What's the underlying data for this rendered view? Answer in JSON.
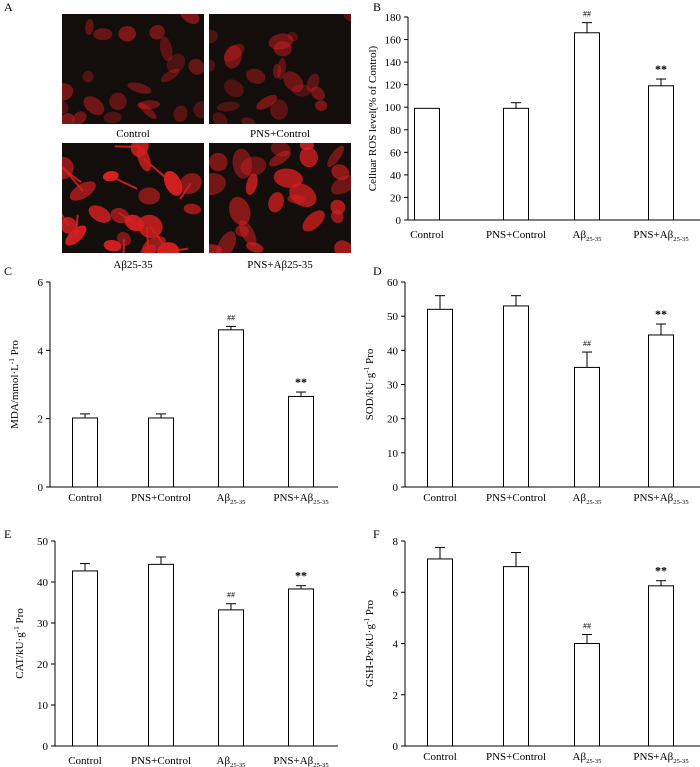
{
  "panel_letters": [
    "A",
    "B",
    "C",
    "D",
    "E",
    "F"
  ],
  "micrographs": [
    {
      "caption": "Control",
      "intensity": "low"
    },
    {
      "caption": "PNS+Control",
      "intensity": "low"
    },
    {
      "caption": "Aβ25-35",
      "intensity": "high"
    },
    {
      "caption": "PNS+Aβ25-35",
      "intensity": "medium"
    }
  ],
  "colors": {
    "cell": "#d42020",
    "background": "#130d0c"
  },
  "chart_data": [
    {
      "panel": "B",
      "type": "bar",
      "categories": [
        "Control",
        "PNS+Control",
        "Aβ25-35",
        "PNS+Aβ25-35"
      ],
      "values": [
        99,
        99,
        166,
        119
      ],
      "errors": [
        0,
        5,
        9,
        6
      ],
      "annotations": [
        "",
        "",
        "##",
        "**"
      ],
      "ylabel": "Celluar ROS level(% of Control)",
      "ylim": [
        0,
        180
      ],
      "yticks": [
        0,
        20,
        40,
        60,
        80,
        100,
        120,
        140,
        160,
        180
      ]
    },
    {
      "panel": "C",
      "type": "bar",
      "categories": [
        "Control",
        "PNS+Control",
        "Aβ25-35",
        "PNS+Aβ25-35"
      ],
      "values": [
        2.02,
        2.02,
        4.6,
        2.65
      ],
      "errors": [
        0.12,
        0.12,
        0.1,
        0.13
      ],
      "annotations": [
        "",
        "",
        "##",
        "**"
      ],
      "ylabel": "MDA/mmol·L⁻¹ Pro",
      "ylim": [
        0,
        6
      ],
      "yticks": [
        0,
        2,
        4,
        6
      ]
    },
    {
      "panel": "D",
      "type": "bar",
      "categories": [
        "Control",
        "PNS+Control",
        "Aβ25-35",
        "PNS+Aβ25-35"
      ],
      "values": [
        52,
        53,
        35,
        44.5
      ],
      "errors": [
        4,
        3,
        4.5,
        3.2
      ],
      "annotations": [
        "",
        "",
        "##",
        "**"
      ],
      "ylabel": "SOD/kU·g⁻¹ Pro",
      "ylim": [
        0,
        60
      ],
      "yticks": [
        0,
        10,
        20,
        30,
        40,
        50,
        60
      ]
    },
    {
      "panel": "E",
      "type": "bar",
      "categories": [
        "Control",
        "PNS+Control",
        "Aβ25-35",
        "PNS+Aβ25-35"
      ],
      "values": [
        42.7,
        44.3,
        33.2,
        38.3
      ],
      "errors": [
        1.8,
        1.8,
        1.5,
        0.8
      ],
      "annotations": [
        "",
        "",
        "##",
        "**"
      ],
      "ylabel": "CAT/kU·g⁻¹ Pro",
      "ylim": [
        0,
        50
      ],
      "yticks": [
        0,
        10,
        20,
        30,
        40,
        50
      ]
    },
    {
      "panel": "F",
      "type": "bar",
      "categories": [
        "Control",
        "PNS+Control",
        "Aβ25-35",
        "PNS+Aβ25-35"
      ],
      "values": [
        7.3,
        7.0,
        4.0,
        6.25
      ],
      "errors": [
        0.45,
        0.55,
        0.35,
        0.2
      ],
      "annotations": [
        "",
        "",
        "##",
        "**"
      ],
      "ylabel": "GSH-Px/kU·g⁻¹ Pro",
      "ylim": [
        0,
        8
      ],
      "yticks": [
        0,
        2,
        4,
        6,
        8
      ]
    }
  ]
}
